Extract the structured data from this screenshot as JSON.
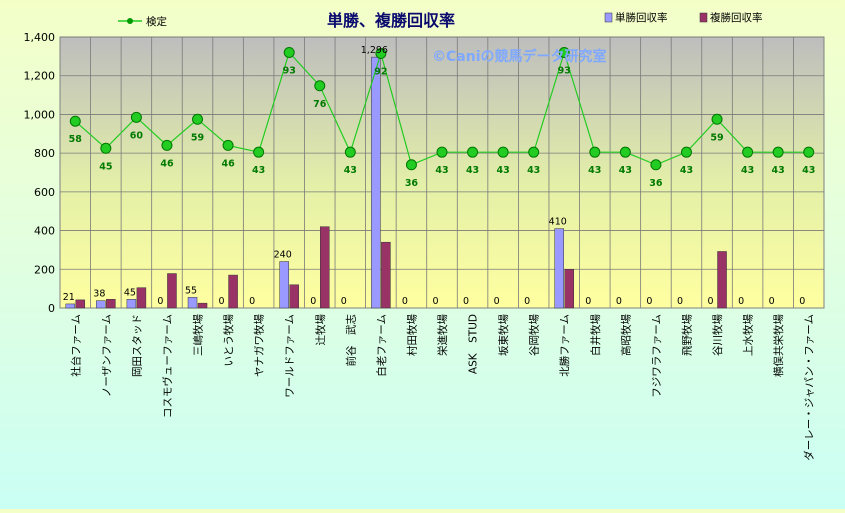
{
  "chart_data": {
    "type": "bar",
    "title": "単勝、複勝回収率",
    "watermark": "©Caniの競馬データ研究室",
    "categories": [
      "社台ファーム",
      "ノーザンファーム",
      "岡田スタッド",
      "コスモヴューファーム",
      "三嶋牧場",
      "いとう牧場",
      "ヤナガワ牧場",
      "ワールドファーム",
      "辻牧場",
      "前谷　武志",
      "白老ファーム",
      "村田牧場",
      "栄進牧場",
      "ASK　STUD",
      "坂東牧場",
      "谷岡牧場",
      "北勝ファーム",
      "白井牧場",
      "高昭牧場",
      "フジワラファーム",
      "飛野牧場",
      "谷川牧場",
      "上水牧場",
      "横俣共栄牧場",
      "ダーレー・ジャパン・ファーム"
    ],
    "series": [
      {
        "name": "単勝回収率",
        "color": "#9999ff",
        "values": [
          21,
          38,
          45,
          0,
          55,
          0,
          0,
          240,
          0,
          0,
          1296,
          0,
          0,
          0,
          0,
          0,
          410,
          0,
          0,
          0,
          0,
          0,
          0,
          0,
          0
        ]
      },
      {
        "name": "複勝回収率",
        "color": "#993366",
        "values": [
          42,
          45,
          105,
          178,
          25,
          170,
          0,
          120,
          420,
          0,
          340,
          0,
          0,
          0,
          0,
          0,
          200,
          0,
          0,
          0,
          0,
          292,
          0,
          0,
          0
        ]
      },
      {
        "name": "検定",
        "color": "#22cc22",
        "values": [
          58,
          45,
          60,
          46,
          59,
          46,
          43,
          93,
          76,
          43,
          92,
          36,
          43,
          43,
          43,
          43,
          93,
          43,
          43,
          36,
          43,
          59,
          43,
          43,
          43
        ]
      }
    ],
    "bar_labels": [
      "21",
      "38",
      "45",
      "0",
      "55",
      "0",
      "0",
      "240",
      "0",
      "0",
      "1,296",
      "0",
      "0",
      "0",
      "0",
      "0",
      "410",
      "0",
      "0",
      "0",
      "0",
      "0",
      "0",
      "0",
      "0"
    ],
    "line_plot_values": [
      965,
      825,
      985,
      840,
      975,
      840,
      805,
      1320,
      1148,
      805,
      1315,
      740,
      805,
      805,
      805,
      805,
      1320,
      805,
      805,
      740,
      805,
      975,
      805,
      805,
      805
    ],
    "ylim": [
      0,
      1400
    ],
    "yticks": [
      "0",
      "200",
      "400",
      "600",
      "800",
      "1,000",
      "1,200",
      "1,400"
    ],
    "ytick_values": [
      0,
      200,
      400,
      600,
      800,
      1000,
      1200,
      1400
    ],
    "grid": true,
    "legend_position": "top"
  }
}
